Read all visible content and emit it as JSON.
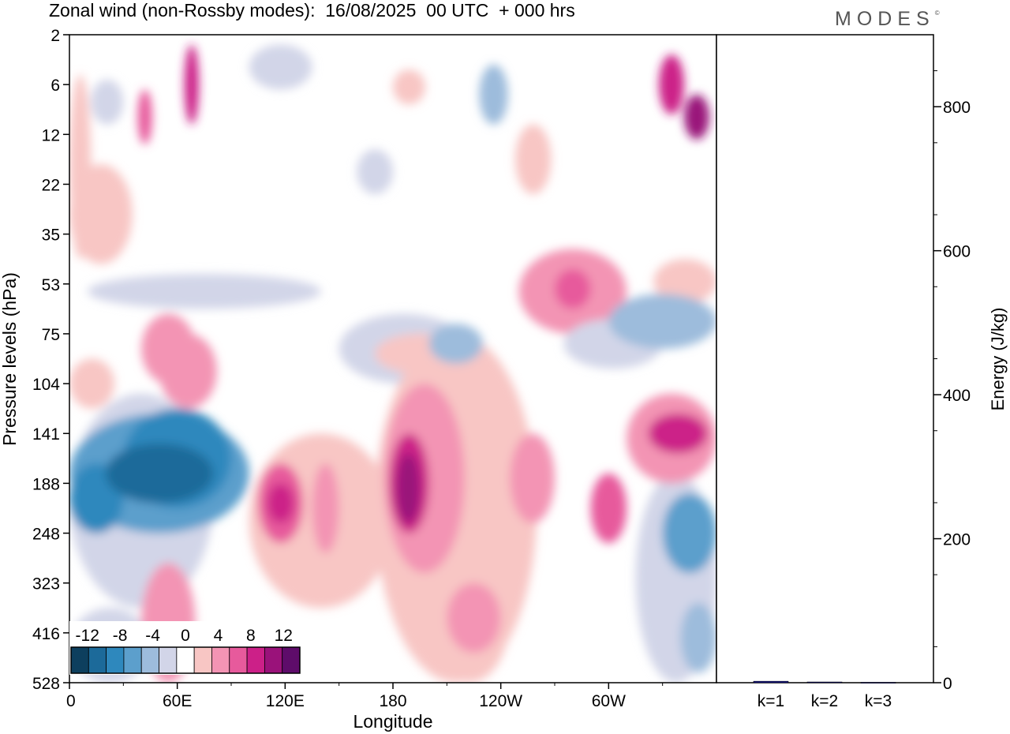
{
  "header": {
    "title": "Zonal wind (non-Rossby modes):  16/08/2025  00 UTC  + 000 hrs",
    "brand": "MODES",
    "brand_mark": "©"
  },
  "chart_data": [
    {
      "type": "heatmap",
      "title": "Zonal wind (non-Rossby modes):  16/08/2025  00 UTC  + 000 hrs",
      "xlabel": "Longitude",
      "ylabel": "Pressure levels (hPa)",
      "x_ticks": [
        "0",
        "60E",
        "120E",
        "180",
        "120W",
        "60W"
      ],
      "x_tick_degrees": [
        0,
        60,
        120,
        180,
        240,
        300
      ],
      "xlim": [
        0,
        360
      ],
      "y_ticks": [
        "2",
        "6",
        "12",
        "22",
        "35",
        "53",
        "75",
        "104",
        "141",
        "188",
        "248",
        "323",
        "416",
        "528"
      ],
      "colorbar": {
        "labels": [
          "-12",
          "-8",
          "-4",
          "0",
          "4",
          "8",
          "12"
        ],
        "bounds": [
          -14,
          -12,
          -10,
          -8,
          -6,
          -4,
          -2,
          2,
          4,
          6,
          8,
          10,
          12,
          14
        ],
        "colors": [
          "#0d3f5e",
          "#1c6a9a",
          "#2e88bd",
          "#5c9fcc",
          "#9dbcdc",
          "#d2d5e8",
          "#ffffff",
          "#f8c6c4",
          "#f394b4",
          "#e75a9c",
          "#cc2088",
          "#9a127a",
          "#5e0c6a"
        ]
      },
      "regions": [
        {
          "x": [
            0,
            12
          ],
          "y": [
            0.8,
            4.5
          ],
          "value": 3
        },
        {
          "x": [
            64,
            72
          ],
          "y": [
            0.2,
            1.8
          ],
          "value": 8
        },
        {
          "x": [
            38,
            46
          ],
          "y": [
            1.1,
            2.2
          ],
          "value": 6
        },
        {
          "x": [
            12,
            30
          ],
          "y": [
            0.9,
            1.8
          ],
          "value": -3
        },
        {
          "x": [
            100,
            135
          ],
          "y": [
            0.2,
            1.1
          ],
          "value": -3
        },
        {
          "x": [
            180,
            198
          ],
          "y": [
            0.7,
            1.4
          ],
          "value": 3
        },
        {
          "x": [
            228,
            244
          ],
          "y": [
            0.6,
            1.8
          ],
          "value": -5
        },
        {
          "x": [
            328,
            342
          ],
          "y": [
            0.4,
            1.6
          ],
          "value": 9
        },
        {
          "x": [
            342,
            356
          ],
          "y": [
            1.2,
            2.1
          ],
          "value": 10
        },
        {
          "x": [
            0,
            35
          ],
          "y": [
            2.6,
            4.6
          ],
          "value": 3
        },
        {
          "x": [
            248,
            268
          ],
          "y": [
            1.8,
            3.2
          ],
          "value": 3
        },
        {
          "x": [
            160,
            180
          ],
          "y": [
            2.3,
            3.2
          ],
          "value": -3
        },
        {
          "x": [
            10,
            140
          ],
          "y": [
            4.8,
            5.5
          ],
          "value": -3
        },
        {
          "x": [
            250,
            310
          ],
          "y": [
            4.3,
            6.0
          ],
          "value": 4
        },
        {
          "x": [
            270,
            290
          ],
          "y": [
            4.7,
            5.5
          ],
          "value": 7
        },
        {
          "x": [
            325,
            360
          ],
          "y": [
            4.5,
            5.4
          ],
          "value": 3
        },
        {
          "x": [
            50,
            82
          ],
          "y": [
            6.0,
            7.5
          ],
          "value": 4
        },
        {
          "x": [
            40,
            70
          ],
          "y": [
            5.6,
            7.0
          ],
          "value": 5
        },
        {
          "x": [
            150,
            222
          ],
          "y": [
            5.6,
            7.0
          ],
          "value": -3
        },
        {
          "x": [
            170,
            220
          ],
          "y": [
            6.0,
            6.8
          ],
          "value": 3
        },
        {
          "x": [
            200,
            230
          ],
          "y": [
            5.8,
            6.6
          ],
          "value": -5
        },
        {
          "x": [
            275,
            330
          ],
          "y": [
            5.7,
            6.7
          ],
          "value": -4
        },
        {
          "x": [
            300,
            360
          ],
          "y": [
            5.2,
            6.3
          ],
          "value": -5
        },
        {
          "x": [
            0,
            25
          ],
          "y": [
            6.5,
            7.5
          ],
          "value": 3
        },
        {
          "x": [
            0,
            80
          ],
          "y": [
            7.2,
            11.5
          ],
          "value": -4
        },
        {
          "x": [
            0,
            100
          ],
          "y": [
            7.6,
            10.0
          ],
          "value": -7
        },
        {
          "x": [
            30,
            90
          ],
          "y": [
            7.5,
            9.5
          ],
          "value": -10
        },
        {
          "x": [
            20,
            80
          ],
          "y": [
            8.2,
            9.4
          ],
          "value": -12
        },
        {
          "x": [
            0,
            30
          ],
          "y": [
            8.6,
            10.0
          ],
          "value": -9
        },
        {
          "x": [
            100,
            180
          ],
          "y": [
            8.0,
            11.5
          ],
          "value": 3
        },
        {
          "x": [
            105,
            130
          ],
          "y": [
            8.6,
            10.2
          ],
          "value": 6
        },
        {
          "x": [
            110,
            125
          ],
          "y": [
            9.0,
            9.8
          ],
          "value": 9
        },
        {
          "x": [
            135,
            150
          ],
          "y": [
            8.6,
            10.4
          ],
          "value": 5
        },
        {
          "x": [
            170,
            260
          ],
          "y": [
            6.0,
            13.0
          ],
          "value": 3
        },
        {
          "x": [
            175,
            220
          ],
          "y": [
            7.0,
            10.8
          ],
          "value": 5
        },
        {
          "x": [
            178,
            200
          ],
          "y": [
            8.0,
            10.0
          ],
          "value": 9
        },
        {
          "x": [
            182,
            195
          ],
          "y": [
            8.4,
            9.8
          ],
          "value": 11
        },
        {
          "x": [
            200,
            245
          ],
          "y": [
            10.4,
            13.0
          ],
          "value": 3
        },
        {
          "x": [
            210,
            240
          ],
          "y": [
            11.0,
            12.4
          ],
          "value": 5
        },
        {
          "x": [
            245,
            270
          ],
          "y": [
            8.0,
            9.8
          ],
          "value": 5
        },
        {
          "x": [
            290,
            310
          ],
          "y": [
            8.8,
            10.2
          ],
          "value": 6
        },
        {
          "x": [
            310,
            360
          ],
          "y": [
            7.2,
            9.0
          ],
          "value": 5
        },
        {
          "x": [
            322,
            355
          ],
          "y": [
            7.6,
            8.4
          ],
          "value": 8
        },
        {
          "x": [
            315,
            360
          ],
          "y": [
            8.8,
            13.0
          ],
          "value": -4
        },
        {
          "x": [
            330,
            360
          ],
          "y": [
            9.2,
            10.8
          ],
          "value": -8
        },
        {
          "x": [
            40,
            70
          ],
          "y": [
            10.6,
            13.0
          ],
          "value": 4
        },
        {
          "x": [
            0,
            45
          ],
          "y": [
            11.5,
            13.0
          ],
          "value": -3
        },
        {
          "x": [
            340,
            360
          ],
          "y": [
            11.4,
            12.8
          ],
          "value": -5
        }
      ]
    },
    {
      "type": "bar",
      "categories": [
        "k=1",
        "k=2",
        "k=3"
      ],
      "values": [
        2,
        1,
        0.5
      ],
      "ylabel": "Energy (J/kg)",
      "y_ticks": [
        "0",
        "200",
        "400",
        "600",
        "800"
      ],
      "ylim": [
        0,
        900
      ],
      "color": "#1a1aa0"
    }
  ]
}
